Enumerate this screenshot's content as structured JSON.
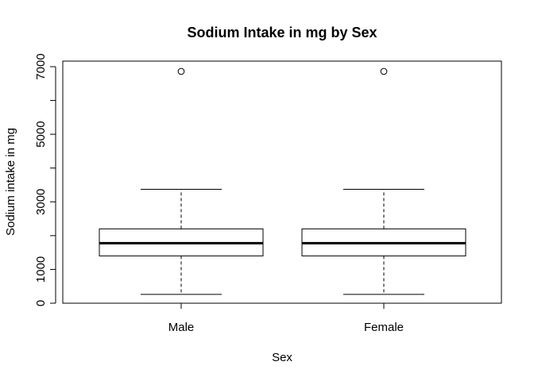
{
  "chart_data": {
    "type": "boxplot",
    "title": "Sodium Intake in mg by Sex",
    "xlabel": "Sex",
    "ylabel": "Sodium intake in mg",
    "categories": [
      "Male",
      "Female"
    ],
    "boxes": [
      {
        "category": "Male",
        "whisker_low": 260,
        "q1": 1400,
        "median": 1775,
        "q3": 2200,
        "whisker_high": 3370,
        "outliers": [
          6860
        ]
      },
      {
        "category": "Female",
        "whisker_low": 260,
        "q1": 1400,
        "median": 1775,
        "q3": 2200,
        "whisker_high": 3370,
        "outliers": [
          6860
        ]
      }
    ],
    "ylim": [
      0,
      7000
    ],
    "yticks": [
      0,
      1000,
      2000,
      3000,
      4000,
      5000,
      6000,
      7000
    ],
    "ytick_labels": [
      "0",
      "1000",
      "",
      "3000",
      "",
      "5000",
      "",
      "7000"
    ],
    "grid": false,
    "legend": "none"
  }
}
